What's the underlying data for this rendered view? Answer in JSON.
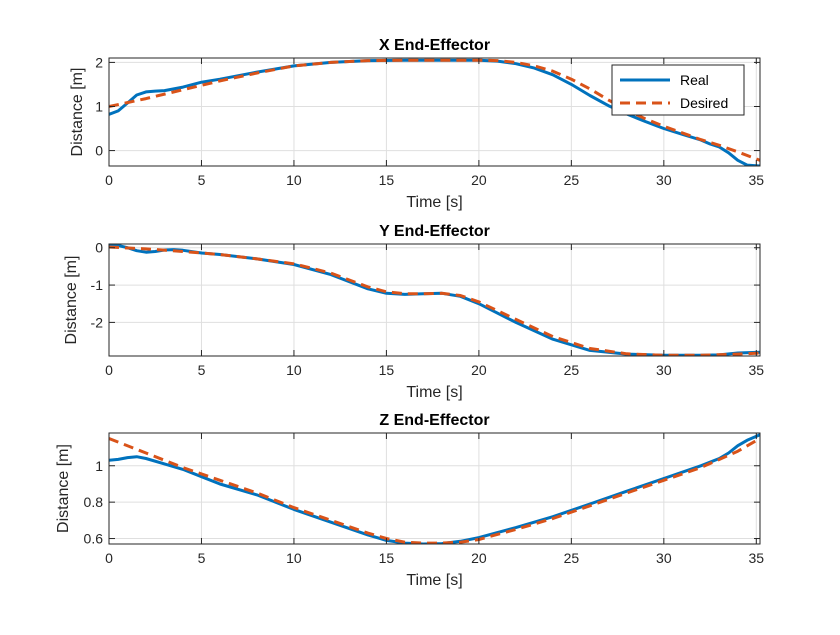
{
  "colors": {
    "real": "#0072BD",
    "desired": "#D95319",
    "grid": "#dfdfdf",
    "axis": "#262626"
  },
  "chart_data": [
    {
      "type": "line",
      "title": "X End-Effector",
      "xlabel": "Time [s]",
      "ylabel": "Distance [m]",
      "xlim": [
        0,
        35.2
      ],
      "ylim": [
        -0.35,
        2.1
      ],
      "xticks": [
        0,
        5,
        10,
        15,
        20,
        25,
        30,
        35
      ],
      "yticks": [
        0,
        1,
        2
      ],
      "grid": true,
      "legend": {
        "position": "top-right",
        "entries": [
          "Real",
          "Desired"
        ]
      },
      "series": [
        {
          "name": "Real",
          "style": "solid",
          "x": [
            0,
            0.5,
            1,
            1.5,
            2,
            2.5,
            3,
            4,
            5,
            6,
            8,
            10,
            12,
            14,
            16,
            18,
            20,
            21,
            22,
            23,
            24,
            25,
            26,
            27,
            28,
            29,
            30,
            31,
            32,
            32.5,
            33,
            33.5,
            34,
            34.5,
            35.2
          ],
          "y": [
            0.82,
            0.9,
            1.08,
            1.26,
            1.33,
            1.35,
            1.36,
            1.44,
            1.55,
            1.62,
            1.78,
            1.92,
            2.0,
            2.04,
            2.05,
            2.05,
            2.05,
            2.03,
            1.97,
            1.87,
            1.72,
            1.5,
            1.25,
            1.02,
            0.83,
            0.66,
            0.5,
            0.37,
            0.24,
            0.15,
            0.08,
            -0.05,
            -0.22,
            -0.33,
            -0.35
          ]
        },
        {
          "name": "Desired",
          "style": "dashed",
          "x": [
            0,
            2,
            4,
            6,
            8,
            10,
            12,
            14,
            16,
            18,
            20,
            21,
            22,
            23,
            24,
            25,
            26,
            27,
            28,
            29,
            30,
            31,
            32,
            33,
            34,
            35.2
          ],
          "y": [
            1.0,
            1.18,
            1.38,
            1.58,
            1.76,
            1.92,
            2.0,
            2.04,
            2.05,
            2.05,
            2.05,
            2.04,
            2.0,
            1.92,
            1.8,
            1.62,
            1.4,
            1.15,
            0.92,
            0.72,
            0.55,
            0.4,
            0.25,
            0.12,
            -0.03,
            -0.22
          ]
        }
      ]
    },
    {
      "type": "line",
      "title": "Y End-Effector",
      "xlabel": "Time [s]",
      "ylabel": "Distance [m]",
      "xlim": [
        0,
        35.2
      ],
      "ylim": [
        -2.9,
        0.1
      ],
      "xticks": [
        0,
        5,
        10,
        15,
        20,
        25,
        30,
        35
      ],
      "yticks": [
        0,
        -1,
        -2
      ],
      "grid": true,
      "series": [
        {
          "name": "Real",
          "style": "solid",
          "x": [
            0,
            0.5,
            1,
            1.5,
            2,
            2.5,
            3,
            3.5,
            4,
            5,
            6,
            8,
            10,
            12,
            14,
            15,
            16,
            17,
            18,
            19,
            20,
            22,
            24,
            26,
            28,
            30,
            32,
            33,
            34,
            35.2
          ],
          "y": [
            0.08,
            0.06,
            0.0,
            -0.08,
            -0.12,
            -0.1,
            -0.06,
            -0.05,
            -0.07,
            -0.14,
            -0.18,
            -0.3,
            -0.45,
            -0.72,
            -1.1,
            -1.22,
            -1.25,
            -1.23,
            -1.22,
            -1.3,
            -1.5,
            -2.0,
            -2.45,
            -2.75,
            -2.85,
            -2.88,
            -2.88,
            -2.87,
            -2.82,
            -2.8
          ]
        },
        {
          "name": "Desired",
          "style": "dashed",
          "x": [
            0,
            2,
            4,
            6,
            8,
            10,
            12,
            14,
            15,
            16,
            17,
            18,
            19,
            20,
            22,
            24,
            26,
            28,
            30,
            32,
            34,
            35.2
          ],
          "y": [
            0.02,
            -0.03,
            -0.1,
            -0.18,
            -0.3,
            -0.43,
            -0.68,
            -1.05,
            -1.18,
            -1.23,
            -1.23,
            -1.22,
            -1.28,
            -1.45,
            -1.92,
            -2.38,
            -2.7,
            -2.84,
            -2.88,
            -2.88,
            -2.85,
            -2.82
          ]
        }
      ]
    },
    {
      "type": "line",
      "title": "Z End-Effector",
      "xlabel": "Time [s]",
      "ylabel": "Distance [m]",
      "xlim": [
        0,
        35.2
      ],
      "ylim": [
        0.57,
        1.18
      ],
      "xticks": [
        0,
        5,
        10,
        15,
        20,
        25,
        30,
        35
      ],
      "yticks": [
        0.6,
        0.8,
        1
      ],
      "grid": true,
      "series": [
        {
          "name": "Real",
          "style": "solid",
          "x": [
            0,
            0.5,
            1,
            1.5,
            2,
            3,
            4,
            5,
            6,
            8,
            10,
            12,
            14,
            15,
            16,
            17,
            18,
            19,
            20,
            22,
            24,
            26,
            28,
            30,
            32,
            33,
            33.5,
            34,
            34.5,
            35.2
          ],
          "y": [
            1.03,
            1.035,
            1.045,
            1.05,
            1.04,
            1.01,
            0.98,
            0.94,
            0.9,
            0.84,
            0.76,
            0.69,
            0.62,
            0.59,
            0.575,
            0.57,
            0.572,
            0.585,
            0.605,
            0.66,
            0.72,
            0.79,
            0.86,
            0.93,
            1.0,
            1.04,
            1.07,
            1.11,
            1.14,
            1.17
          ]
        },
        {
          "name": "Desired",
          "style": "dashed",
          "x": [
            0,
            2,
            4,
            6,
            8,
            10,
            12,
            14,
            15,
            16,
            17,
            18,
            19,
            20,
            22,
            24,
            26,
            28,
            30,
            32,
            34,
            35.2
          ],
          "y": [
            1.15,
            1.07,
            0.99,
            0.92,
            0.85,
            0.77,
            0.7,
            0.63,
            0.6,
            0.58,
            0.575,
            0.575,
            0.58,
            0.595,
            0.65,
            0.71,
            0.78,
            0.85,
            0.92,
            0.99,
            1.08,
            1.15
          ]
        }
      ]
    }
  ]
}
